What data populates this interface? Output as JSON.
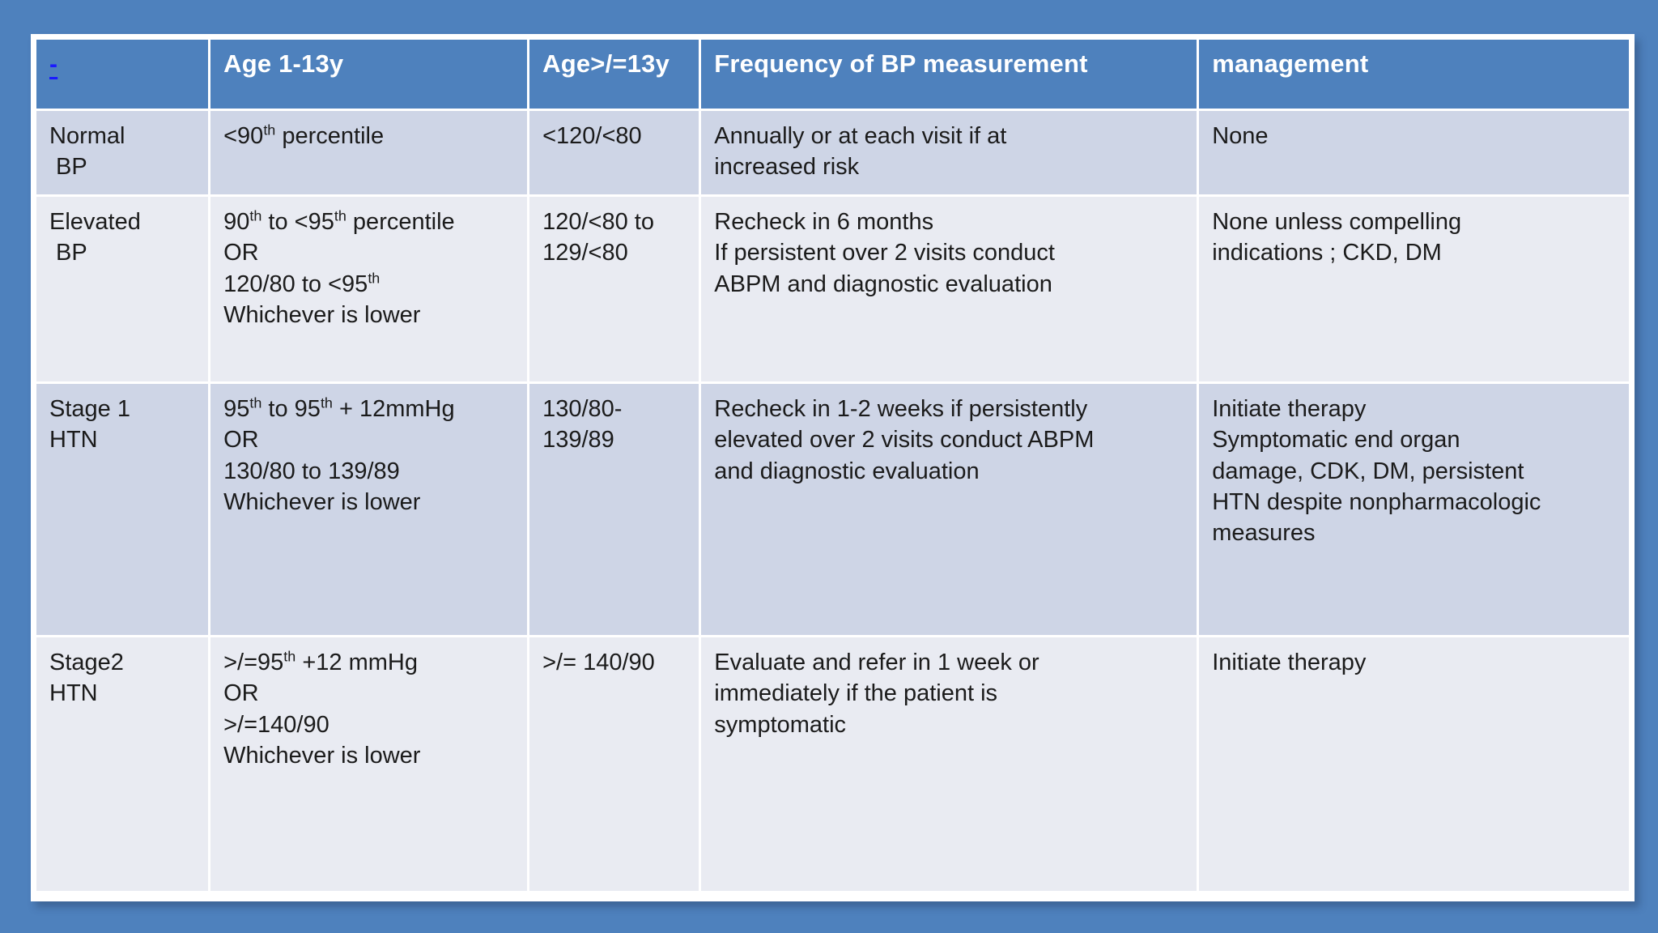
{
  "slide": {
    "colors": {
      "bg": "#4E81BD",
      "grid": "#FFFFFF",
      "band_dark": "#CED5E6",
      "band_light": "#E9EBF2",
      "header_text": "#FFFFFF",
      "body_text": "#1B1B1B",
      "link": "#1A1AFF"
    }
  },
  "table": {
    "header": {
      "link_label": "-",
      "columns": [
        "Age 1-13y",
        "Age>/=13y",
        "Frequency of BP measurement",
        "management"
      ]
    },
    "rows": [
      {
        "category": "Normal\n BP",
        "age_1_13y": "<90^th^ percentile",
        "age_ge_13y": "<120/<80",
        "frequency": "Annually or at each visit if at\nincreased risk",
        "management": "None"
      },
      {
        "category": "Elevated\n BP",
        "age_1_13y": "90^th^ to <95^th^ percentile\nOR\n120/80 to <95^th^\nWhichever is lower",
        "age_ge_13y": "120/<80 to\n129/<80",
        "frequency": "Recheck in 6 months\nIf persistent over 2 visits conduct\nABPM and diagnostic evaluation",
        "management": "None unless compelling\nindications ; CKD, DM"
      },
      {
        "category": "Stage 1\nHTN",
        "age_1_13y": "95^th^ to 95^th^ + 12mmHg\nOR\n130/80 to 139/89\nWhichever is lower",
        "age_ge_13y": "130/80-\n139/89",
        "frequency": "Recheck in 1-2 weeks if persistently\nelevated over 2 visits conduct ABPM\nand diagnostic evaluation",
        "management": "Initiate therapy\nSymptomatic end organ\ndamage, CDK, DM, persistent\nHTN despite nonpharmacologic\nmeasures"
      },
      {
        "category": "Stage2\nHTN",
        "age_1_13y": ">/=95^th^ +12 mmHg\nOR\n>/=140/90\nWhichever is lower",
        "age_ge_13y": ">/= 140/90",
        "frequency": "Evaluate and refer in 1 week or\nimmediately if the patient is\nsymptomatic",
        "management": "Initiate therapy"
      }
    ]
  }
}
